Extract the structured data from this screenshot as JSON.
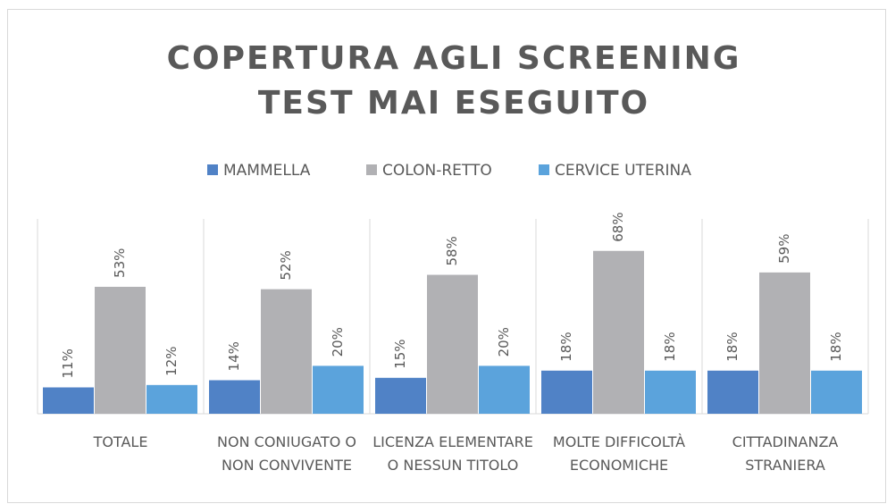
{
  "chart_data": {
    "type": "bar",
    "title": "COPERTURA AGLI SCREENING",
    "subtitle": "TEST MAI ESEGUITO",
    "categories": [
      "TOTALE",
      "NON CONIUGATO O NON CONVIVENTE",
      "LICENZA ELEMENTARE O NESSUN TITOLO",
      "MOLTE DIFFICOLTÀ ECONOMICHE",
      "CITTADINANZA STRANIERA"
    ],
    "series": [
      {
        "name": "MAMMELLA",
        "color": "#5082c6",
        "values": [
          11,
          14,
          15,
          18,
          18
        ],
        "value_labels": [
          "11%",
          "14%",
          "15%",
          "18%",
          "18%"
        ]
      },
      {
        "name": "COLON-RETTO",
        "color": "#b1b1b4",
        "values": [
          53,
          52,
          58,
          68,
          59
        ],
        "value_labels": [
          "53%",
          "52%",
          "58%",
          "68%",
          "59%"
        ]
      },
      {
        "name": "CERVICE UTERINA",
        "color": "#5ba3dc",
        "values": [
          12,
          20,
          20,
          18,
          18
        ],
        "value_labels": [
          "12%",
          "20%",
          "20%",
          "18%",
          "18%"
        ]
      }
    ],
    "legend": "top"
  }
}
